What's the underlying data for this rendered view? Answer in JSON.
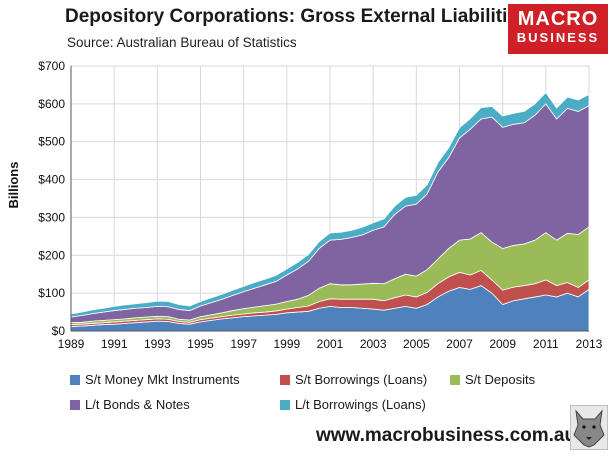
{
  "header": {
    "title": "Depository Corporations: Gross External Liabilities",
    "source": "Source: Australian Bureau of Statistics",
    "logo_line1": "MACRO",
    "logo_line2": "BUSINESS"
  },
  "footer": {
    "url": "www.macrobusiness.com.au"
  },
  "chart_data": {
    "type": "area",
    "stacked": true,
    "ylabel": "Billions",
    "xlabel": "",
    "ylim": [
      0,
      700
    ],
    "yticks": [
      0,
      100,
      200,
      300,
      400,
      500,
      600,
      700
    ],
    "ytick_labels": [
      "$0",
      "$100",
      "$200",
      "$300",
      "$400",
      "$500",
      "$600",
      "$700"
    ],
    "xticks": [
      1989,
      1991,
      1993,
      1995,
      1997,
      1999,
      2001,
      2003,
      2005,
      2007,
      2009,
      2011,
      2013
    ],
    "xtick_labels": [
      "1989",
      "1991",
      "1993",
      "1995",
      "1997",
      "1999",
      "2001",
      "2003",
      "2005",
      "2007",
      "2009",
      "2011",
      "2013"
    ],
    "xlim": [
      1989,
      2013
    ],
    "gridlines": true,
    "x": [
      1989.0,
      1989.5,
      1990.0,
      1990.5,
      1991.0,
      1991.5,
      1992.0,
      1992.5,
      1993.0,
      1993.5,
      1994.0,
      1994.5,
      1995.0,
      1995.5,
      1996.0,
      1996.5,
      1997.0,
      1997.5,
      1998.0,
      1998.5,
      1999.0,
      1999.5,
      2000.0,
      2000.5,
      2001.0,
      2001.5,
      2002.0,
      2002.5,
      2003.0,
      2003.5,
      2004.0,
      2004.5,
      2005.0,
      2005.5,
      2006.0,
      2006.5,
      2007.0,
      2007.5,
      2008.0,
      2008.5,
      2009.0,
      2009.5,
      2010.0,
      2010.5,
      2011.0,
      2011.5,
      2012.0,
      2012.5,
      2013.0
    ],
    "series": [
      {
        "name": "S/t Money Mkt Instruments",
        "color": "#4f81bd",
        "values": [
          12,
          13,
          15,
          17,
          18,
          20,
          22,
          24,
          26,
          25,
          20,
          18,
          24,
          28,
          32,
          35,
          38,
          40,
          42,
          44,
          48,
          50,
          52,
          60,
          65,
          62,
          62,
          60,
          58,
          55,
          60,
          65,
          60,
          70,
          90,
          105,
          115,
          110,
          120,
          100,
          70,
          80,
          85,
          90,
          95,
          90,
          100,
          90,
          110
        ]
      },
      {
        "name": "S/t Borrowings (Loans)",
        "color": "#c0504d",
        "values": [
          5,
          5,
          5,
          5,
          6,
          6,
          6,
          6,
          6,
          6,
          5,
          5,
          6,
          6,
          6,
          7,
          7,
          8,
          8,
          9,
          10,
          12,
          14,
          18,
          20,
          22,
          22,
          24,
          26,
          25,
          28,
          30,
          30,
          32,
          35,
          38,
          40,
          38,
          40,
          35,
          38,
          36,
          35,
          35,
          40,
          30,
          28,
          25,
          25
        ]
      },
      {
        "name": "S/t Deposits",
        "color": "#9bbb59",
        "values": [
          5,
          5,
          6,
          6,
          6,
          6,
          7,
          7,
          7,
          7,
          6,
          6,
          8,
          9,
          10,
          12,
          14,
          15,
          17,
          18,
          20,
          22,
          28,
          35,
          40,
          38,
          38,
          40,
          42,
          45,
          50,
          55,
          55,
          60,
          65,
          75,
          85,
          95,
          100,
          100,
          110,
          110,
          110,
          115,
          125,
          120,
          130,
          140,
          140
        ]
      },
      {
        "name": "L/t Bonds & Notes",
        "color": "#8064a2",
        "values": [
          15,
          18,
          20,
          22,
          24,
          25,
          25,
          25,
          26,
          26,
          26,
          25,
          28,
          32,
          36,
          40,
          45,
          50,
          55,
          60,
          70,
          80,
          90,
          105,
          115,
          120,
          125,
          130,
          140,
          150,
          170,
          180,
          190,
          200,
          230,
          240,
          270,
          290,
          300,
          330,
          320,
          320,
          320,
          330,
          340,
          320,
          330,
          325,
          320
        ]
      },
      {
        "name": "L/t Borrowings (Loans)",
        "color": "#4bacc6",
        "values": [
          8,
          9,
          10,
          10,
          11,
          12,
          12,
          13,
          14,
          14,
          13,
          12,
          12,
          13,
          13,
          14,
          14,
          15,
          15,
          16,
          16,
          17,
          18,
          18,
          19,
          19,
          19,
          20,
          20,
          21,
          22,
          23,
          24,
          24,
          25,
          26,
          27,
          28,
          30,
          28,
          30,
          29,
          30,
          30,
          30,
          29,
          30,
          30,
          30
        ]
      }
    ]
  }
}
